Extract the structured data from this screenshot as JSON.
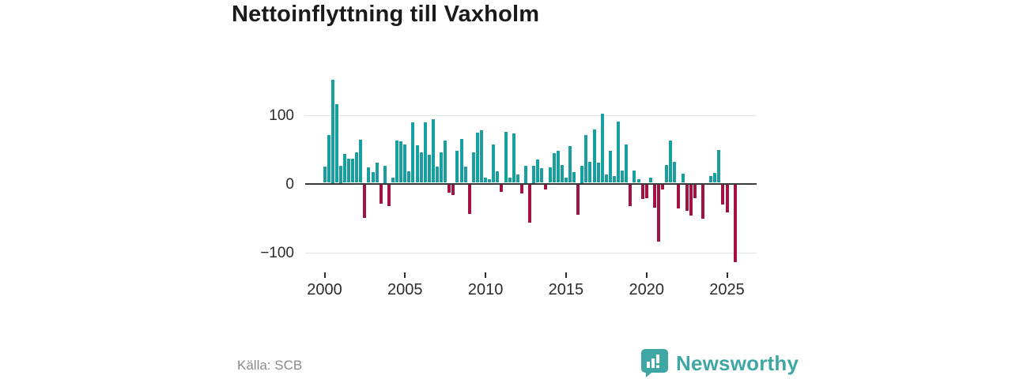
{
  "title": "Nettoinflyttning till Vaxholm",
  "source": "Källa: SCB",
  "brand": {
    "name": "Newsworthy",
    "color": "#3fa7a3"
  },
  "colors": {
    "positive_bar": "#18a0a0",
    "negative_bar": "#a31245",
    "axis_line": "#3b3b3b",
    "gridline": "#e3e3e3",
    "tick_text": "#2b2b2b",
    "title_text": "#1a1a1a",
    "source_text": "#8a8a8a"
  },
  "chart_data": {
    "type": "bar",
    "title": "Nettoinflyttning till Vaxholm",
    "xlabel": "",
    "ylabel": "",
    "frequency": "quarterly",
    "start_year": 2000,
    "start_quarter": 1,
    "end_year": 2025,
    "end_quarter": 3,
    "grid": true,
    "legend": "none",
    "ylim": [
      -125,
      160
    ],
    "y_axis": {
      "ticks": [
        100,
        0,
        -100
      ],
      "tick_labels": [
        "100",
        "0",
        "−100"
      ]
    },
    "x_axis": {
      "tick_years": [
        2000,
        2005,
        2010,
        2015,
        2020,
        2025
      ]
    },
    "series": [
      {
        "name": "Nettoinflyttning",
        "values": [
          24,
          70,
          150,
          114,
          25,
          42,
          35,
          35,
          44,
          63,
          -48,
          22,
          15,
          29,
          -28,
          25,
          -31,
          8,
          62,
          60,
          56,
          17,
          88,
          55,
          44,
          88,
          41,
          92,
          23,
          44,
          61,
          -12,
          -15,
          46,
          64,
          23,
          -42,
          44,
          73,
          76,
          7,
          5,
          56,
          17,
          -10,
          74,
          8,
          72,
          12,
          -13,
          25,
          -55,
          25,
          34,
          21,
          -7,
          22,
          43,
          46,
          26,
          8,
          54,
          15,
          -44,
          25,
          69,
          31,
          78,
          29,
          101,
          12,
          46,
          10,
          89,
          18,
          56,
          -31,
          18,
          5,
          -21,
          -20,
          8,
          -33,
          -83,
          -7,
          26,
          62,
          30,
          -35,
          13,
          -38,
          -45,
          -20,
          0,
          -49,
          0,
          10,
          14,
          48,
          -29,
          -40,
          0,
          -113
        ]
      }
    ]
  }
}
